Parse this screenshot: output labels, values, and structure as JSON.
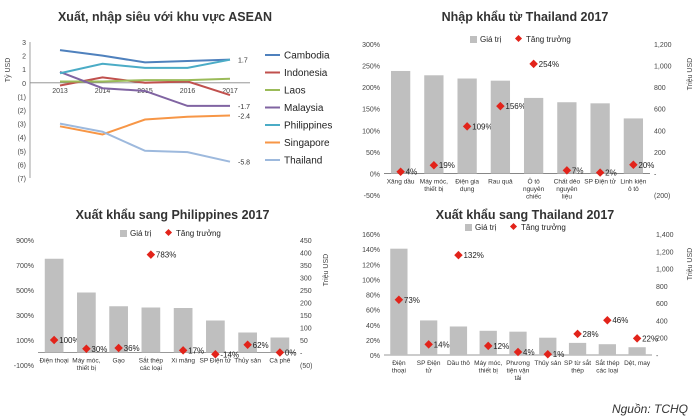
{
  "source": "Nguồn: TCHQ",
  "chart_data": [
    {
      "type": "line",
      "title": "Xuất, nhập siêu với khu vực ASEAN",
      "ylabel": "Tỷ USD",
      "x": [
        "2013",
        "2014",
        "2015",
        "2016",
        "2017"
      ],
      "ylim": [
        -7,
        3
      ],
      "yticks": [
        "3",
        "2",
        "1",
        "0",
        "(1)",
        "(2)",
        "(3)",
        "(4)",
        "(5)",
        "(6)",
        "(7)"
      ],
      "legend_position": "right",
      "series": [
        {
          "name": "Cambodia",
          "color": "#4f81bd",
          "values": [
            2.4,
            2.0,
            1.5,
            1.6,
            1.7
          ],
          "end_label": "1.7"
        },
        {
          "name": "Indonesia",
          "color": "#c0504d",
          "values": [
            -0.2,
            0.4,
            0.0,
            0.1,
            -0.9
          ],
          "end_label": ""
        },
        {
          "name": "Laos",
          "color": "#9bbb59",
          "values": [
            0.1,
            0.1,
            0.2,
            0.2,
            0.3
          ],
          "end_label": ""
        },
        {
          "name": "Malaysia",
          "color": "#8064a2",
          "values": [
            0.8,
            -0.4,
            -0.6,
            -1.7,
            -1.7
          ],
          "end_label": "-1.7"
        },
        {
          "name": "Philippines",
          "color": "#4bacc6",
          "values": [
            0.7,
            1.4,
            1.1,
            1.1,
            1.7
          ],
          "end_label": ""
        },
        {
          "name": "Singapore",
          "color": "#f79646",
          "values": [
            -3.2,
            -3.8,
            -2.7,
            -2.5,
            -2.4
          ],
          "end_label": "-2.4"
        },
        {
          "name": "Thailand",
          "color": "#9db9dd",
          "values": [
            -3.0,
            -3.6,
            -5.0,
            -5.1,
            -5.8
          ],
          "end_label": "-5.8"
        }
      ]
    },
    {
      "type": "bar",
      "title": "Nhập khẩu từ Thailand 2017",
      "ylabel_right": "Triệu USD",
      "legend": [
        "Giá trị",
        "Tăng trưởng"
      ],
      "left_axis": {
        "ylim": [
          -50,
          300
        ],
        "ticks": [
          "300%",
          "250%",
          "200%",
          "150%",
          "100%",
          "50%",
          "0%",
          "-50%"
        ]
      },
      "right_axis": {
        "ylim": [
          -200,
          1200
        ],
        "ticks": [
          "1,200",
          "1,000",
          "800",
          "600",
          "400",
          "200",
          "-",
          "(200)"
        ]
      },
      "categories": [
        "Xăng dầu",
        "Máy móc, thiết bị",
        "Điện gia dụng",
        "Rau quả",
        "Ô tô nguyên chiếc",
        "Chất dẻo nguyên liệu",
        "SP Điện tử",
        "Linh kiện ô tô"
      ],
      "values": [
        950,
        910,
        880,
        860,
        700,
        660,
        650,
        510
      ],
      "growth": [
        4,
        19,
        109,
        156,
        254,
        7,
        2,
        20
      ],
      "growth_labels": [
        "4%",
        "19%",
        "109%",
        "156%",
        "254%",
        "7%",
        "2%",
        "20%"
      ]
    },
    {
      "type": "bar",
      "title": "Xuất khẩu sang Philippines 2017",
      "ylabel_right": "Triệu USD",
      "legend": [
        "Giá trị",
        "Tăng trưởng"
      ],
      "left_axis": {
        "ylim": [
          -100,
          900
        ],
        "ticks": [
          "900%",
          "700%",
          "500%",
          "300%",
          "100%",
          "-100%"
        ]
      },
      "right_axis": {
        "ylim": [
          -50,
          450
        ],
        "ticks": [
          "450",
          "400",
          "350",
          "300",
          "250",
          "200",
          "150",
          "100",
          "50",
          "-",
          "(50)"
        ]
      },
      "categories": [
        "Điện thoại",
        "Máy móc, thiết bị",
        "Gạo",
        "Sắt thép các loại",
        "Xi măng",
        "SP Điện tử",
        "Thủy sản",
        "Cà phê"
      ],
      "values": [
        375,
        240,
        185,
        180,
        178,
        128,
        80,
        60
      ],
      "growth": [
        100,
        30,
        36,
        783,
        17,
        -14,
        62,
        0
      ],
      "growth_labels": [
        "100%",
        "30%",
        "36%",
        "783%",
        "17%",
        "-14%",
        "62%",
        "0%"
      ]
    },
    {
      "type": "bar",
      "title": "Xuất khẩu sang Thailand 2017",
      "ylabel_right": "Triệu USD",
      "legend": [
        "Giá trị",
        "Tăng trưởng"
      ],
      "left_axis": {
        "ylim": [
          0,
          160
        ],
        "ticks": [
          "160%",
          "140%",
          "120%",
          "100%",
          "80%",
          "60%",
          "40%",
          "20%",
          "0%"
        ]
      },
      "right_axis": {
        "ylim": [
          0,
          1400
        ],
        "ticks": [
          "1,400",
          "1,200",
          "1,000",
          "800",
          "600",
          "400",
          "200",
          "-"
        ]
      },
      "categories": [
        "Điện thoại",
        "SP Điện tử",
        "Dầu thô",
        "Máy móc, thiết bị",
        "Phương tiện vận tải",
        "Thủy sản",
        "SP từ sắt thép",
        "Sắt thép các loại",
        "Dệt, may"
      ],
      "values": [
        1230,
        400,
        330,
        280,
        270,
        200,
        140,
        125,
        90
      ],
      "growth": [
        73,
        14,
        132,
        12,
        4,
        1,
        28,
        46,
        22
      ],
      "growth_labels": [
        "73%",
        "14%",
        "132%",
        "12%",
        "4%",
        "1%",
        "28%",
        "46%",
        "22%"
      ]
    }
  ]
}
